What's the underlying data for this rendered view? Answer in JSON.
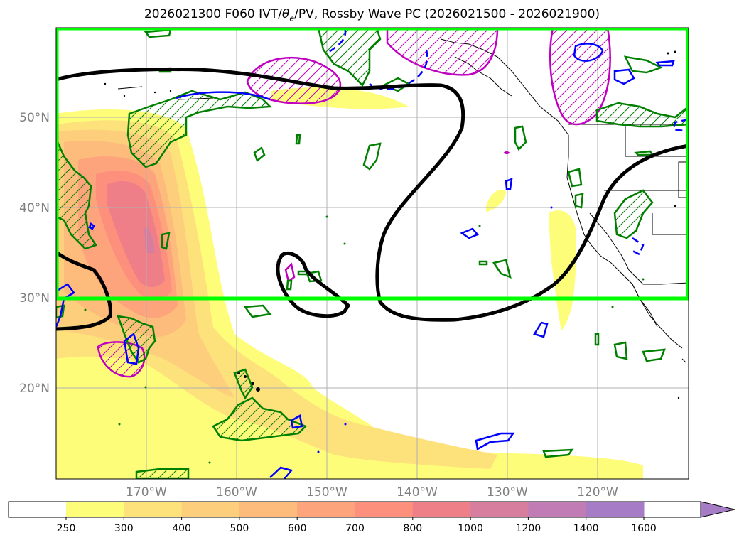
{
  "title": {
    "prefix": "2026021300 F060 IVT/",
    "theta": "θ",
    "theta_sub": "e",
    "suffix": "/PV, Rossby Wave PC (2026021500 - 2026021900)"
  },
  "lat_labels": [
    "50°N",
    "40°N",
    "30°N",
    "20°N"
  ],
  "lon_labels": [
    "170°W",
    "160°W",
    "150°W",
    "140°W",
    "130°W",
    "120°W"
  ],
  "colorbar": {
    "ticks": [
      "250",
      "300",
      "400",
      "500",
      "600",
      "700",
      "800",
      "1000",
      "1200",
      "1400",
      "1600"
    ],
    "colors": [
      "#fdfd7a",
      "#fde27c",
      "#fdce7c",
      "#fdbb7c",
      "#fda47c",
      "#fd907c",
      "#ee7f88",
      "#d77e9e",
      "#c27cb5",
      "#a77cc7"
    ]
  },
  "styles": {
    "domain_box_color": "#00ff00",
    "wave_contour_color": "#000000",
    "pv_color": "#008000",
    "theta_color": "#0000ff",
    "pc_color": "#c000c0"
  },
  "icons": {
    "colorbar_extend": "triangle-right"
  }
}
